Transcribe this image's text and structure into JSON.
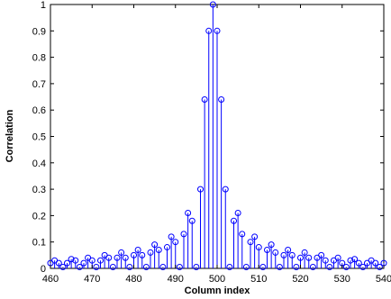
{
  "chart_data": {
    "type": "stem",
    "title": "",
    "xlabel": "Column index",
    "ylabel": "Correlation",
    "xlim": [
      460,
      540
    ],
    "ylim": [
      0,
      1
    ],
    "x_ticks": [
      460,
      470,
      480,
      490,
      500,
      510,
      520,
      530,
      540
    ],
    "y_ticks": [
      0,
      0.1,
      0.2,
      0.3,
      0.4,
      0.5,
      0.6,
      0.7,
      0.8,
      0.9,
      1
    ],
    "y_tick_labels": [
      "0",
      "0.1",
      "0.2",
      "0.3",
      "0.4",
      "0.5",
      "0.6",
      "0.7",
      "0.8",
      "0.9",
      "1"
    ],
    "grid": false,
    "legend": "none",
    "color": "#0000ff",
    "series": [
      {
        "x": [
          460,
          461,
          462,
          463,
          464,
          465,
          466,
          467,
          468,
          469,
          470,
          471,
          472,
          473,
          474,
          475,
          476,
          477,
          478,
          479,
          480,
          481,
          482,
          483,
          484,
          485,
          486,
          487,
          488,
          489,
          490,
          491,
          492,
          493,
          494,
          495,
          496,
          497,
          498,
          499,
          500,
          501,
          502,
          503,
          504,
          505,
          506,
          507,
          508,
          509,
          510,
          511,
          512,
          513,
          514,
          515,
          516,
          517,
          518,
          519,
          520,
          521,
          522,
          523,
          524,
          525,
          526,
          527,
          528,
          529,
          530,
          531,
          532,
          533,
          534,
          535,
          536,
          537,
          538,
          539,
          540
        ],
        "values": [
          0.02,
          0.03,
          0.02,
          0.005,
          0.02,
          0.035,
          0.03,
          0.005,
          0.02,
          0.04,
          0.03,
          0.005,
          0.03,
          0.05,
          0.04,
          0.005,
          0.04,
          0.06,
          0.04,
          0.005,
          0.05,
          0.07,
          0.05,
          0.005,
          0.06,
          0.09,
          0.07,
          0.005,
          0.08,
          0.12,
          0.1,
          0.005,
          0.13,
          0.21,
          0.18,
          0.005,
          0.3,
          0.64,
          0.9,
          1.0,
          0.9,
          0.64,
          0.3,
          0.005,
          0.18,
          0.21,
          0.13,
          0.005,
          0.1,
          0.12,
          0.08,
          0.005,
          0.07,
          0.09,
          0.06,
          0.005,
          0.05,
          0.07,
          0.05,
          0.005,
          0.04,
          0.06,
          0.04,
          0.005,
          0.04,
          0.05,
          0.03,
          0.005,
          0.03,
          0.04,
          0.02,
          0.005,
          0.03,
          0.035,
          0.02,
          0.005,
          0.02,
          0.03,
          0.02,
          0.005,
          0.02
        ]
      }
    ]
  }
}
